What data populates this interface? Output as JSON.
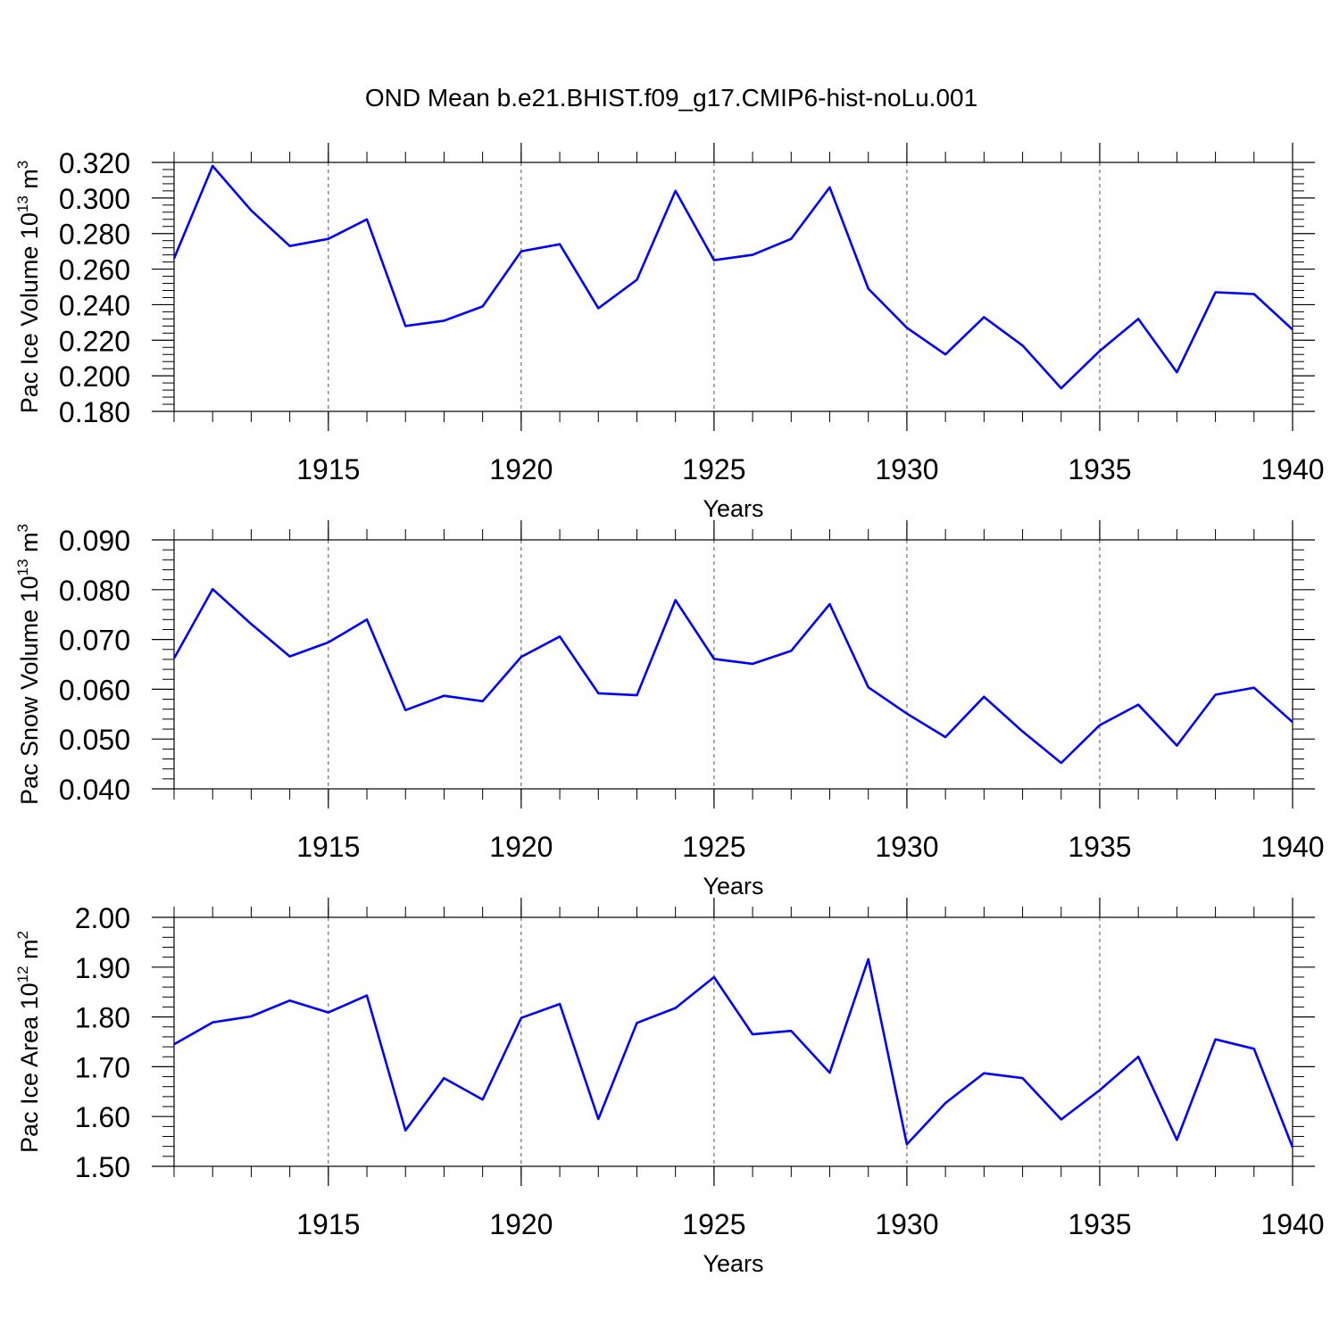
{
  "title": "OND Mean b.e21.BHIST.f09_g17.CMIP6-hist-noLu.001",
  "colors": {
    "series": "#0000ff",
    "axis": "#000000",
    "grid": "#555555"
  },
  "chart_data": [
    {
      "type": "line",
      "ylabel": "Pac Ice Volume 10",
      "ylabel_exp": "13",
      "ylabel_unit": " m",
      "ylabel_unit_exp": "3",
      "xlabel": "Years",
      "ylim": [
        0.18,
        0.32
      ],
      "yticks": [
        "0.180",
        "0.200",
        "0.220",
        "0.240",
        "0.260",
        "0.280",
        "0.300",
        "0.320"
      ],
      "xlim": [
        1911,
        1940
      ],
      "xticks": [
        "1915",
        "1920",
        "1925",
        "1930",
        "1935",
        "1940"
      ],
      "grid": "vertical dashed at major x ticks",
      "series": [
        {
          "x": [
            1911,
            1912,
            1913,
            1914,
            1915,
            1916,
            1917,
            1918,
            1919,
            1920,
            1921,
            1922,
            1923,
            1924,
            1925,
            1926,
            1927,
            1928,
            1929,
            1930,
            1931,
            1932,
            1933,
            1934,
            1935,
            1936,
            1937,
            1938,
            1939,
            1940
          ],
          "values": [
            0.266,
            0.318,
            0.293,
            0.273,
            0.277,
            0.288,
            0.228,
            0.231,
            0.239,
            0.27,
            0.274,
            0.238,
            0.254,
            0.304,
            0.265,
            0.268,
            0.277,
            0.306,
            0.249,
            0.227,
            0.212,
            0.233,
            0.217,
            0.193,
            0.214,
            0.232,
            0.202,
            0.247,
            0.246,
            0.226
          ]
        }
      ]
    },
    {
      "type": "line",
      "ylabel": "Pac Snow Volume 10",
      "ylabel_exp": "13",
      "ylabel_unit": " m",
      "ylabel_unit_exp": "3",
      "xlabel": "Years",
      "ylim": [
        0.04,
        0.09
      ],
      "yticks": [
        "0.040",
        "0.050",
        "0.060",
        "0.070",
        "0.080",
        "0.090"
      ],
      "xlim": [
        1911,
        1940
      ],
      "xticks": [
        "1915",
        "1920",
        "1925",
        "1930",
        "1935",
        "1940"
      ],
      "grid": "vertical dashed at major x ticks",
      "series": [
        {
          "x": [
            1911,
            1912,
            1913,
            1914,
            1915,
            1916,
            1917,
            1918,
            1919,
            1920,
            1921,
            1922,
            1923,
            1924,
            1925,
            1926,
            1927,
            1928,
            1929,
            1930,
            1931,
            1932,
            1933,
            1934,
            1935,
            1936,
            1937,
            1938,
            1939,
            1940
          ],
          "values": [
            0.0662,
            0.0801,
            0.0731,
            0.0666,
            0.0694,
            0.074,
            0.0558,
            0.0587,
            0.0576,
            0.0665,
            0.0706,
            0.0592,
            0.0588,
            0.0779,
            0.0661,
            0.0651,
            0.0677,
            0.0771,
            0.0604,
            0.0551,
            0.0504,
            0.0585,
            0.0515,
            0.0452,
            0.0528,
            0.0569,
            0.0487,
            0.0589,
            0.0603,
            0.0534
          ]
        }
      ]
    },
    {
      "type": "line",
      "ylabel": "Pac Ice Area 10",
      "ylabel_exp": "12",
      "ylabel_unit": " m",
      "ylabel_unit_exp": "2",
      "xlabel": "Years",
      "ylim": [
        1.5,
        2.0
      ],
      "yticks": [
        "1.50",
        "1.60",
        "1.70",
        "1.80",
        "1.90",
        "2.00"
      ],
      "xlim": [
        1911,
        1940
      ],
      "xticks": [
        "1915",
        "1920",
        "1925",
        "1930",
        "1935",
        "1940"
      ],
      "grid": "vertical dashed at major x ticks",
      "series": [
        {
          "x": [
            1911,
            1912,
            1913,
            1914,
            1915,
            1916,
            1917,
            1918,
            1919,
            1920,
            1921,
            1922,
            1923,
            1924,
            1925,
            1926,
            1927,
            1928,
            1929,
            1930,
            1931,
            1932,
            1933,
            1934,
            1935,
            1936,
            1937,
            1938,
            1939,
            1940
          ],
          "values": [
            1.745,
            1.789,
            1.801,
            1.833,
            1.809,
            1.843,
            1.572,
            1.677,
            1.634,
            1.798,
            1.826,
            1.595,
            1.788,
            1.818,
            1.88,
            1.765,
            1.772,
            1.688,
            1.916,
            1.544,
            1.627,
            1.687,
            1.677,
            1.594,
            1.653,
            1.72,
            1.553,
            1.755,
            1.736,
            1.538
          ]
        }
      ]
    }
  ]
}
